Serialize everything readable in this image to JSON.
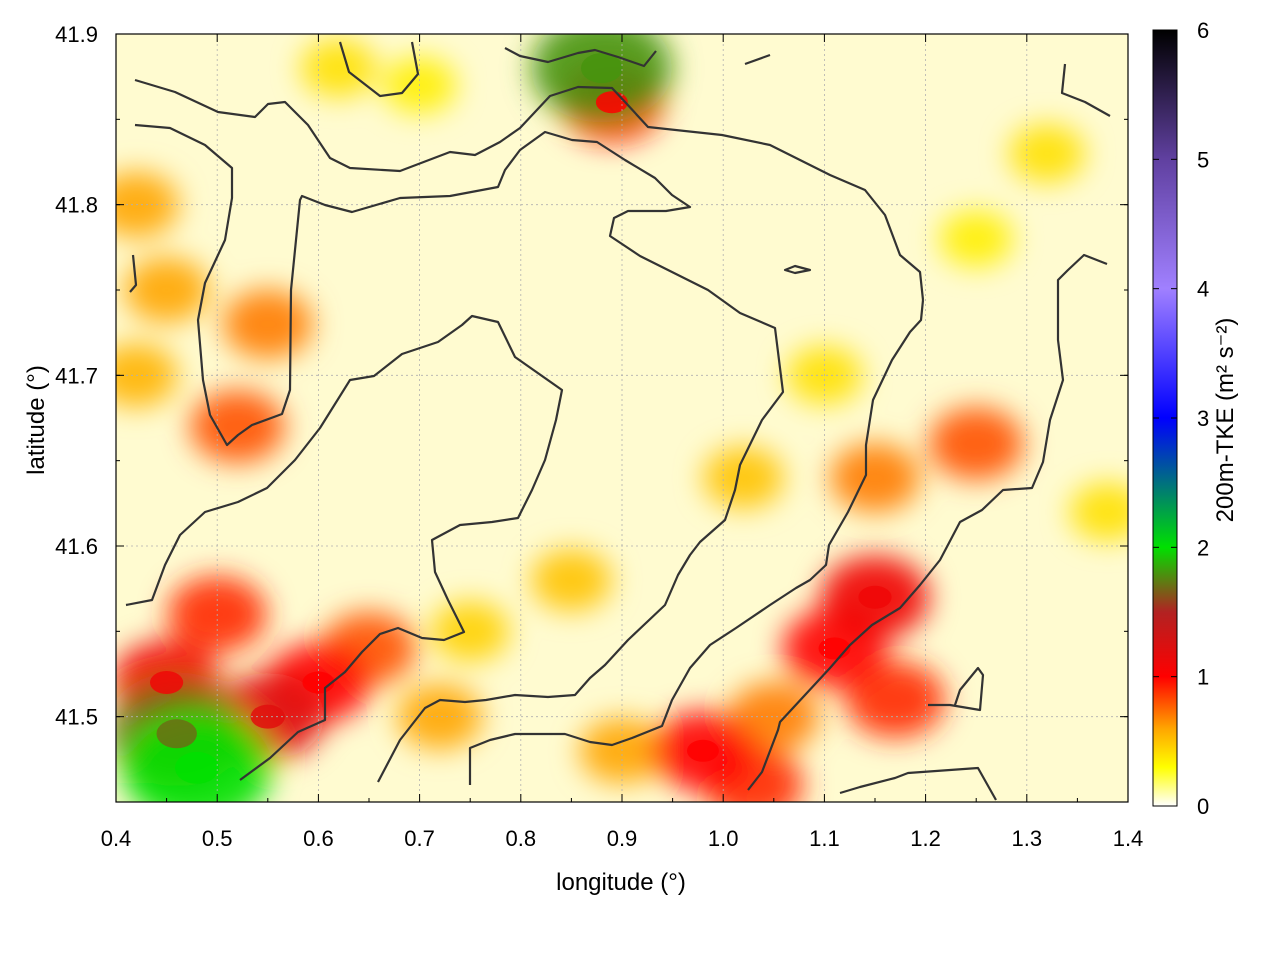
{
  "chart_data": {
    "type": "heatmap",
    "title": "",
    "xlabel": "longitude (°)",
    "ylabel": "latitude (°)",
    "xlim": [
      0.4,
      1.4
    ],
    "ylim": [
      41.45,
      41.9
    ],
    "x_ticks": [
      "0.4",
      "0.5",
      "0.6",
      "0.7",
      "0.8",
      "0.9",
      "1.0",
      "1.1",
      "1.2",
      "1.3",
      "1.4"
    ],
    "y_ticks": [
      "41.5",
      "41.6",
      "41.7",
      "41.8",
      "41.9"
    ],
    "grid": true,
    "colorbar": {
      "label": "200m-TKE (m² s⁻²)",
      "range": [
        0,
        6
      ],
      "ticks": [
        "0",
        "1",
        "2",
        "3",
        "4",
        "5",
        "6"
      ],
      "colors": [
        {
          "value": 0,
          "color": "#ffffff"
        },
        {
          "value": 0.3,
          "color": "#ffff00"
        },
        {
          "value": 0.6,
          "color": "#ffa500"
        },
        {
          "value": 1.0,
          "color": "#ff0000"
        },
        {
          "value": 1.5,
          "color": "#b22222"
        },
        {
          "value": 2.0,
          "color": "#00e000"
        },
        {
          "value": 3.0,
          "color": "#0000ff"
        },
        {
          "value": 4.0,
          "color": "#a080ff"
        },
        {
          "value": 5.0,
          "color": "#6040a0"
        },
        {
          "value": 6.0,
          "color": "#000000"
        }
      ]
    },
    "hotspots": [
      {
        "lon": 0.48,
        "lat": 41.47,
        "tke": 2.0
      },
      {
        "lon": 0.46,
        "lat": 41.49,
        "tke": 1.7
      },
      {
        "lon": 0.55,
        "lat": 41.5,
        "tke": 1.2
      },
      {
        "lon": 0.45,
        "lat": 41.52,
        "tke": 1.1
      },
      {
        "lon": 0.6,
        "lat": 41.52,
        "tke": 1.0
      },
      {
        "lon": 0.65,
        "lat": 41.54,
        "tke": 0.8
      },
      {
        "lon": 0.5,
        "lat": 41.56,
        "tke": 0.9
      },
      {
        "lon": 0.72,
        "lat": 41.5,
        "tke": 0.6
      },
      {
        "lon": 0.42,
        "lat": 41.7,
        "tke": 0.55
      },
      {
        "lon": 0.45,
        "lat": 41.75,
        "tke": 0.6
      },
      {
        "lon": 0.52,
        "lat": 41.67,
        "tke": 0.8
      },
      {
        "lon": 0.55,
        "lat": 41.73,
        "tke": 0.7
      },
      {
        "lon": 0.42,
        "lat": 41.8,
        "tke": 0.6
      },
      {
        "lon": 0.88,
        "lat": 41.88,
        "tke": 1.8
      },
      {
        "lon": 0.89,
        "lat": 41.86,
        "tke": 1.0
      },
      {
        "lon": 1.15,
        "lat": 41.57,
        "tke": 1.1
      },
      {
        "lon": 1.11,
        "lat": 41.54,
        "tke": 1.0
      },
      {
        "lon": 1.17,
        "lat": 41.51,
        "tke": 0.9
      },
      {
        "lon": 1.05,
        "lat": 41.5,
        "tke": 0.7
      },
      {
        "lon": 0.98,
        "lat": 41.48,
        "tke": 1.0
      },
      {
        "lon": 1.03,
        "lat": 41.46,
        "tke": 0.9
      },
      {
        "lon": 1.25,
        "lat": 41.66,
        "tke": 0.8
      },
      {
        "lon": 1.15,
        "lat": 41.64,
        "tke": 0.7
      },
      {
        "lon": 0.85,
        "lat": 41.58,
        "tke": 0.5
      },
      {
        "lon": 0.9,
        "lat": 41.48,
        "tke": 0.6
      },
      {
        "lon": 1.02,
        "lat": 41.64,
        "tke": 0.5
      },
      {
        "lon": 1.32,
        "lat": 41.83,
        "tke": 0.4
      },
      {
        "lon": 1.25,
        "lat": 41.78,
        "tke": 0.35
      },
      {
        "lon": 1.1,
        "lat": 41.7,
        "tke": 0.4
      },
      {
        "lon": 0.7,
        "lat": 41.87,
        "tke": 0.35
      },
      {
        "lon": 0.62,
        "lat": 41.88,
        "tke": 0.4
      },
      {
        "lon": 1.38,
        "lat": 41.62,
        "tke": 0.4
      },
      {
        "lon": 0.75,
        "lat": 41.55,
        "tke": 0.45
      }
    ]
  }
}
